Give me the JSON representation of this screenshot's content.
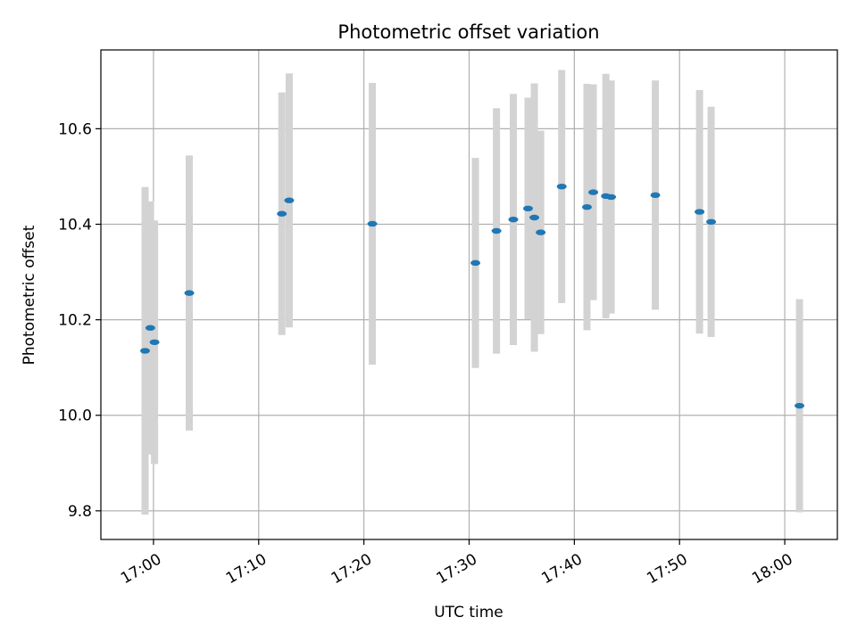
{
  "chart_data": {
    "type": "scatter",
    "title": "Photometric offset variation",
    "xlabel": "UTC time",
    "ylabel": "Photometric offset",
    "x_ticks": [
      "17:00",
      "17:10",
      "17:20",
      "17:30",
      "17:40",
      "17:50",
      "18:00"
    ],
    "y_ticks": [
      "9.8",
      "10.0",
      "10.2",
      "10.4",
      "10.6"
    ],
    "xlim": [
      "16:55",
      "18:05"
    ],
    "ylim": [
      9.74,
      10.765
    ],
    "grid": true,
    "legend": "none",
    "colors": {
      "marker": "#1f77b4",
      "errorbar": "#d3d3d3",
      "grid": "#b0b0b0"
    },
    "points": [
      {
        "x": "16:59.2",
        "y": 10.135,
        "yerr": 0.343
      },
      {
        "x": "16:59.7",
        "y": 10.183,
        "yerr": 0.265
      },
      {
        "x": "17:00.1",
        "y": 10.153,
        "yerr": 0.255
      },
      {
        "x": "17:03.4",
        "y": 10.256,
        "yerr": 0.288
      },
      {
        "x": "17:12.2",
        "y": 10.422,
        "yerr": 0.254
      },
      {
        "x": "17:12.9",
        "y": 10.45,
        "yerr": 0.266
      },
      {
        "x": "17:20.8",
        "y": 10.401,
        "yerr": 0.295
      },
      {
        "x": "17:30.6",
        "y": 10.319,
        "yerr": 0.22
      },
      {
        "x": "17:32.6",
        "y": 10.386,
        "yerr": 0.257
      },
      {
        "x": "17:34.2",
        "y": 10.41,
        "yerr": 0.263
      },
      {
        "x": "17:35.6",
        "y": 10.433,
        "yerr": 0.232
      },
      {
        "x": "17:36.2",
        "y": 10.414,
        "yerr": 0.281
      },
      {
        "x": "17:36.8",
        "y": 10.383,
        "yerr": 0.213
      },
      {
        "x": "17:38.8",
        "y": 10.479,
        "yerr": 0.244
      },
      {
        "x": "17:41.2",
        "y": 10.436,
        "yerr": 0.258
      },
      {
        "x": "17:41.8",
        "y": 10.467,
        "yerr": 0.226
      },
      {
        "x": "17:43.0",
        "y": 10.459,
        "yerr": 0.256
      },
      {
        "x": "17:43.5",
        "y": 10.457,
        "yerr": 0.244
      },
      {
        "x": "17:47.7",
        "y": 10.461,
        "yerr": 0.24
      },
      {
        "x": "17:51.9",
        "y": 10.426,
        "yerr": 0.255
      },
      {
        "x": "17:53.0",
        "y": 10.405,
        "yerr": 0.241
      },
      {
        "x": "18:01.4",
        "y": 10.02,
        "yerr": 0.223
      }
    ]
  }
}
